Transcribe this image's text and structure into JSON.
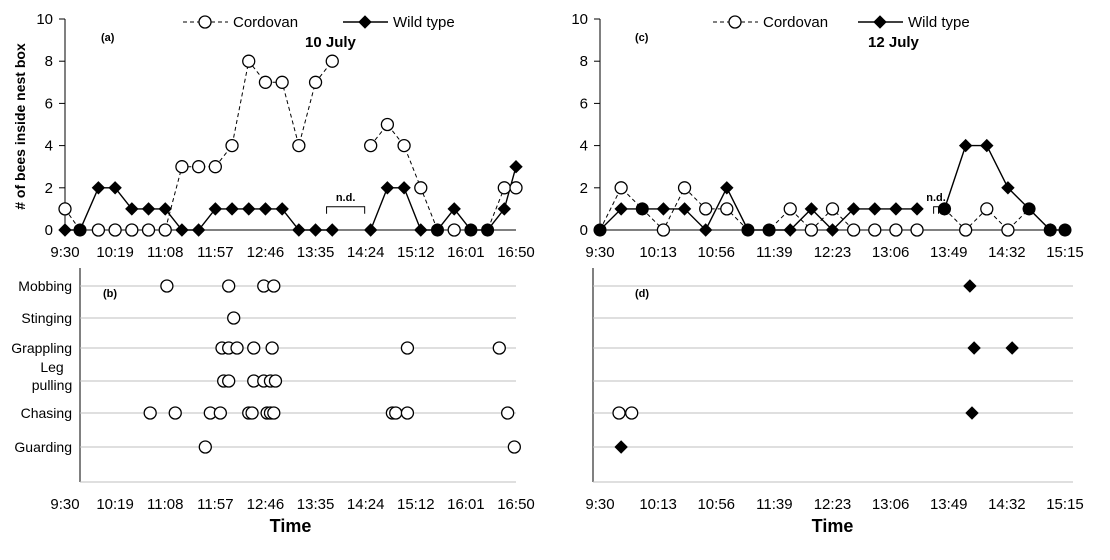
{
  "chart_data": [
    {
      "id": "a",
      "type": "line",
      "panel_label": "(a)",
      "date_label": "10 July",
      "ylabel": "# of bees inside nest box",
      "ylim": [
        0,
        10
      ],
      "yticks": [
        "0",
        "2",
        "4",
        "6",
        "8",
        "10"
      ],
      "xticks": [
        "9:30",
        "10:19",
        "11:08",
        "11:57",
        "12:46",
        "13:35",
        "14:24",
        "15:12",
        "16:01",
        "16:50"
      ],
      "xlim": [
        0,
        27
      ],
      "gap_label": "n.d.",
      "gap_range": [
        15.3,
        18.3
      ],
      "legend": {
        "cordovan": "Cordovan",
        "wild": "Wild type"
      },
      "series": [
        {
          "name": "Cordovan",
          "segments": [
            [
              [
                0,
                1
              ],
              [
                0.9,
                0
              ],
              [
                2,
                0
              ],
              [
                3,
                0
              ],
              [
                4,
                0
              ],
              [
                5,
                0
              ],
              [
                6,
                0
              ],
              [
                7,
                3
              ],
              [
                8,
                3
              ],
              [
                9,
                3
              ],
              [
                10,
                4
              ],
              [
                11,
                8
              ],
              [
                12,
                7
              ],
              [
                13,
                7
              ],
              [
                14,
                4
              ],
              [
                15,
                7
              ],
              [
                16,
                8
              ]
            ],
            [
              [
                18.3,
                4
              ],
              [
                19.3,
                5
              ],
              [
                20.3,
                4
              ],
              [
                21.3,
                2
              ],
              [
                22.3,
                0
              ],
              [
                23.3,
                0
              ],
              [
                24.3,
                0
              ],
              [
                25.3,
                0
              ],
              [
                26.3,
                2
              ],
              [
                27,
                2
              ]
            ]
          ]
        },
        {
          "name": "Wild type",
          "segments": [
            [
              [
                0,
                0
              ],
              [
                0.9,
                0
              ],
              [
                2,
                2
              ],
              [
                3,
                2
              ],
              [
                4,
                1
              ],
              [
                5,
                1
              ],
              [
                6,
                1
              ],
              [
                7,
                0
              ],
              [
                8,
                0
              ],
              [
                9,
                1
              ],
              [
                10,
                1
              ],
              [
                11,
                1
              ],
              [
                12,
                1
              ],
              [
                13,
                1
              ],
              [
                14,
                0
              ],
              [
                15,
                0
              ],
              [
                16,
                0
              ]
            ],
            [
              [
                18.3,
                0
              ],
              [
                19.3,
                2
              ],
              [
                20.3,
                2
              ],
              [
                21.3,
                0
              ],
              [
                22.3,
                0
              ],
              [
                23.3,
                1
              ],
              [
                24.3,
                0
              ],
              [
                25.3,
                0
              ],
              [
                26.3,
                1
              ],
              [
                27,
                3
              ]
            ]
          ]
        }
      ]
    },
    {
      "id": "c",
      "type": "line",
      "panel_label": "(c)",
      "date_label": "12 July",
      "ylim": [
        0,
        10
      ],
      "yticks": [
        "0",
        "2",
        "4",
        "6",
        "8",
        "10"
      ],
      "xticks": [
        "9:30",
        "10:13",
        "10:56",
        "11:39",
        "12:23",
        "13:06",
        "13:49",
        "14:32",
        "15:15"
      ],
      "xlim": [
        0,
        22
      ],
      "gap_label": "n.d.",
      "gap_range": [
        15.5,
        16.3
      ],
      "legend": {
        "cordovan": "Cordovan",
        "wild": "Wild type"
      },
      "series": [
        {
          "name": "Cordovan",
          "segments": [
            [
              [
                0,
                0
              ],
              [
                1,
                2
              ],
              [
                2,
                1
              ],
              [
                3,
                0
              ],
              [
                4,
                2
              ],
              [
                5,
                1
              ],
              [
                6,
                1
              ],
              [
                7,
                0
              ],
              [
                8,
                0
              ],
              [
                9,
                1
              ],
              [
                10,
                0
              ],
              [
                11,
                1
              ],
              [
                12,
                0
              ],
              [
                13,
                0
              ],
              [
                14,
                0
              ],
              [
                15,
                0
              ]
            ],
            [
              [
                16.3,
                1
              ],
              [
                17.3,
                0
              ],
              [
                18.3,
                1
              ],
              [
                19.3,
                0
              ],
              [
                20.3,
                1
              ],
              [
                21.3,
                0
              ],
              [
                22,
                0
              ]
            ]
          ]
        },
        {
          "name": "Wild type",
          "segments": [
            [
              [
                0,
                0
              ],
              [
                1,
                1
              ],
              [
                2,
                1
              ],
              [
                3,
                1
              ],
              [
                4,
                1
              ],
              [
                5,
                0
              ],
              [
                6,
                2
              ],
              [
                7,
                0
              ],
              [
                8,
                0
              ],
              [
                9,
                0
              ],
              [
                10,
                1
              ],
              [
                11,
                0
              ],
              [
                12,
                1
              ],
              [
                13,
                1
              ],
              [
                14,
                1
              ],
              [
                15,
                1
              ]
            ],
            [
              [
                16.3,
                1
              ],
              [
                17.3,
                4
              ],
              [
                18.3,
                4
              ],
              [
                19.3,
                2
              ],
              [
                20.3,
                1
              ],
              [
                21.3,
                0
              ],
              [
                21.3,
                0
              ],
              [
                22,
                0
              ]
            ]
          ]
        }
      ]
    },
    {
      "id": "b",
      "type": "scatter",
      "panel_label": "(b)",
      "xlabel": "Time",
      "categories": [
        "Mobbing",
        "Stinging",
        "Grappling",
        "Leg pulling",
        "Chasing",
        "Guarding"
      ],
      "xticks": [
        "9:30",
        "10:19",
        "11:08",
        "11:57",
        "12:46",
        "13:35",
        "14:24",
        "15:12",
        "16:01",
        "16:50"
      ],
      "xlim": [
        0,
        27
      ],
      "series": [
        {
          "name": "Cordovan",
          "points": {
            "Mobbing": [
              6.1,
              9.8,
              11.9,
              12.5
            ],
            "Stinging": [
              10.1
            ],
            "Grappling": [
              9.4,
              9.8,
              10.3,
              11.3,
              12.4,
              20.5,
              26.0
            ],
            "Leg pulling": [
              9.5,
              9.8,
              11.3,
              11.9,
              12.3,
              12.6
            ],
            "Chasing": [
              5.1,
              6.6,
              8.7,
              9.3,
              11.0,
              11.2,
              12.1,
              12.3,
              12.5,
              19.6,
              19.8,
              20.5,
              26.5
            ],
            "Guarding": [
              8.4,
              26.9
            ]
          }
        }
      ]
    },
    {
      "id": "d",
      "type": "scatter",
      "panel_label": "(d)",
      "xlabel": "Time",
      "categories": [
        "Mobbing",
        "Stinging",
        "Grappling",
        "Leg pulling",
        "Chasing",
        "Guarding"
      ],
      "xticks": [
        "9:30",
        "10:13",
        "10:56",
        "11:39",
        "12:23",
        "13:06",
        "13:49",
        "14:32",
        "15:15"
      ],
      "xlim": [
        0,
        22
      ],
      "series": [
        {
          "name": "Cordovan",
          "points": {
            "Chasing": [
              0.9,
              1.5
            ]
          }
        },
        {
          "name": "Wild type",
          "points": {
            "Mobbing": [
              17.5
            ],
            "Grappling": [
              17.7,
              19.5
            ],
            "Chasing": [
              17.6
            ],
            "Guarding": [
              1.0
            ]
          }
        }
      ]
    }
  ]
}
